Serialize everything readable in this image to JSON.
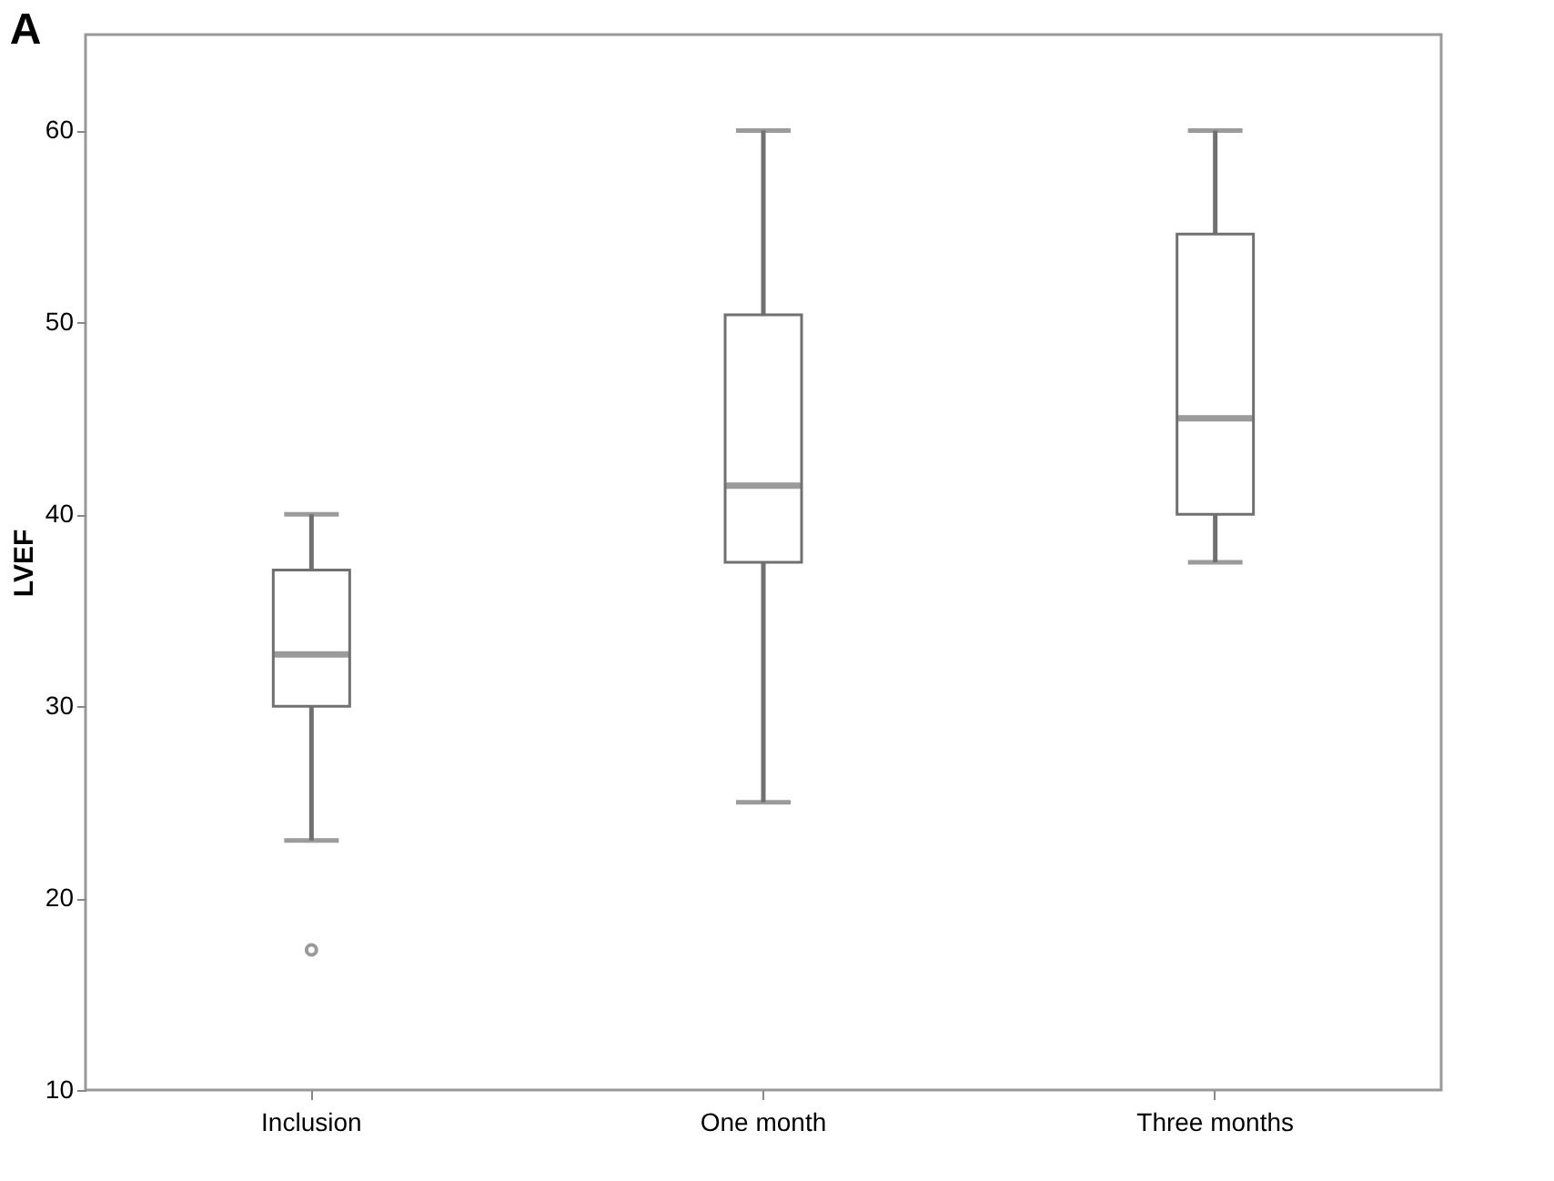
{
  "chart_data": {
    "type": "box",
    "title": "A",
    "ylabel": "LVEF",
    "categories": [
      "Inclusion",
      "One month",
      "Three months"
    ],
    "boxes": [
      {
        "low": 23,
        "q1": 30,
        "median": 32.7,
        "q3": 37.1,
        "high": 40,
        "outliers": [
          17.3
        ]
      },
      {
        "low": 25,
        "q1": 37.5,
        "median": 41.5,
        "q3": 50.4,
        "high": 60
      },
      {
        "low": 37.5,
        "q1": 40,
        "median": 45,
        "q3": 54.6,
        "high": 60
      }
    ],
    "color": "#707070",
    "ylim": [
      10,
      65
    ],
    "yticks": [
      10,
      20,
      30,
      40,
      50,
      60
    ],
    "grid": false
  }
}
